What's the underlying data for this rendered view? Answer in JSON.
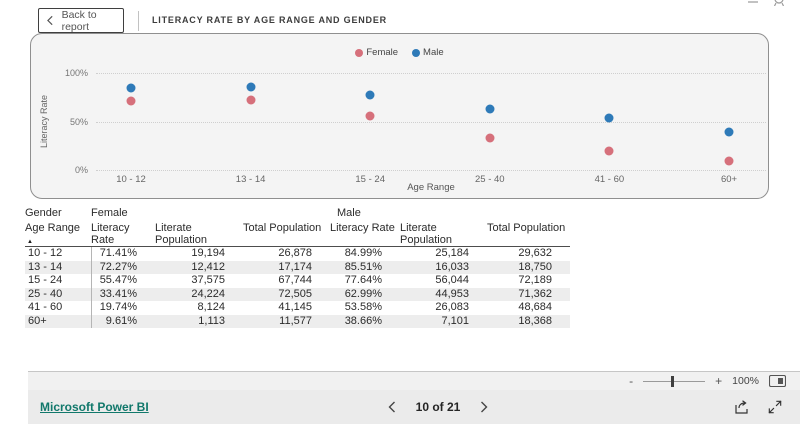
{
  "topbar": {
    "back_label": "Back to report",
    "title": "LITERACY RATE BY AGE RANGE AND GENDER"
  },
  "chart_data": {
    "type": "scatter",
    "title": "LITERACY RATE BY AGE RANGE AND GENDER",
    "categories": [
      "10 - 12",
      "13 - 14",
      "15 - 24",
      "25 - 40",
      "41 - 60",
      "60+"
    ],
    "series": [
      {
        "name": "Female",
        "color": "#d6707b",
        "values": [
          71.41,
          72.27,
          55.47,
          33.41,
          19.74,
          9.61
        ]
      },
      {
        "name": "Male",
        "color": "#2e7ab8",
        "values": [
          84.99,
          85.51,
          77.64,
          62.99,
          53.58,
          38.66
        ]
      }
    ],
    "xlabel": "Age Range",
    "ylabel": "Literacy Rate",
    "ylim": [
      0,
      100
    ],
    "y_ticks": [
      {
        "label": "100%",
        "value": 100
      },
      {
        "label": "50%",
        "value": 50
      },
      {
        "label": "0%",
        "value": 0
      }
    ],
    "legend_position": "top-center",
    "grid": "horizontal-dotted"
  },
  "table": {
    "group_headers": {
      "gender": "Gender",
      "female": "Female",
      "male": "Male"
    },
    "age_range_header": "Age Range",
    "sort_icon": "▲",
    "col_headers": [
      "Literacy Rate",
      "Literate Population",
      "Total Population",
      "Literacy Rate",
      "Literate Population",
      "Total Population"
    ],
    "rows": [
      [
        "10 - 12",
        "71.41%",
        "19,194",
        "26,878",
        "84.99%",
        "25,184",
        "29,632"
      ],
      [
        "13 - 14",
        "72.27%",
        "12,412",
        "17,174",
        "85.51%",
        "16,033",
        "18,750"
      ],
      [
        "15 - 24",
        "55.47%",
        "37,575",
        "67,744",
        "77.64%",
        "56,044",
        "72,189"
      ],
      [
        "25 - 40",
        "33.41%",
        "24,224",
        "72,505",
        "62.99%",
        "44,953",
        "71,362"
      ],
      [
        "41 - 60",
        "19.74%",
        "8,124",
        "41,145",
        "53.58%",
        "26,083",
        "48,684"
      ],
      [
        "60+",
        "9.61%",
        "1,113",
        "11,577",
        "38.66%",
        "7,101",
        "18,368"
      ]
    ]
  },
  "zoom_toolbar": {
    "minus": "-",
    "plus": "+",
    "level": "100%"
  },
  "footer": {
    "brand_link": "Microsoft Power BI",
    "page_indicator": "10 of 21"
  },
  "colors": {
    "female": "#d6707b",
    "male": "#2e7ab8",
    "brand_link": "#11786b"
  }
}
